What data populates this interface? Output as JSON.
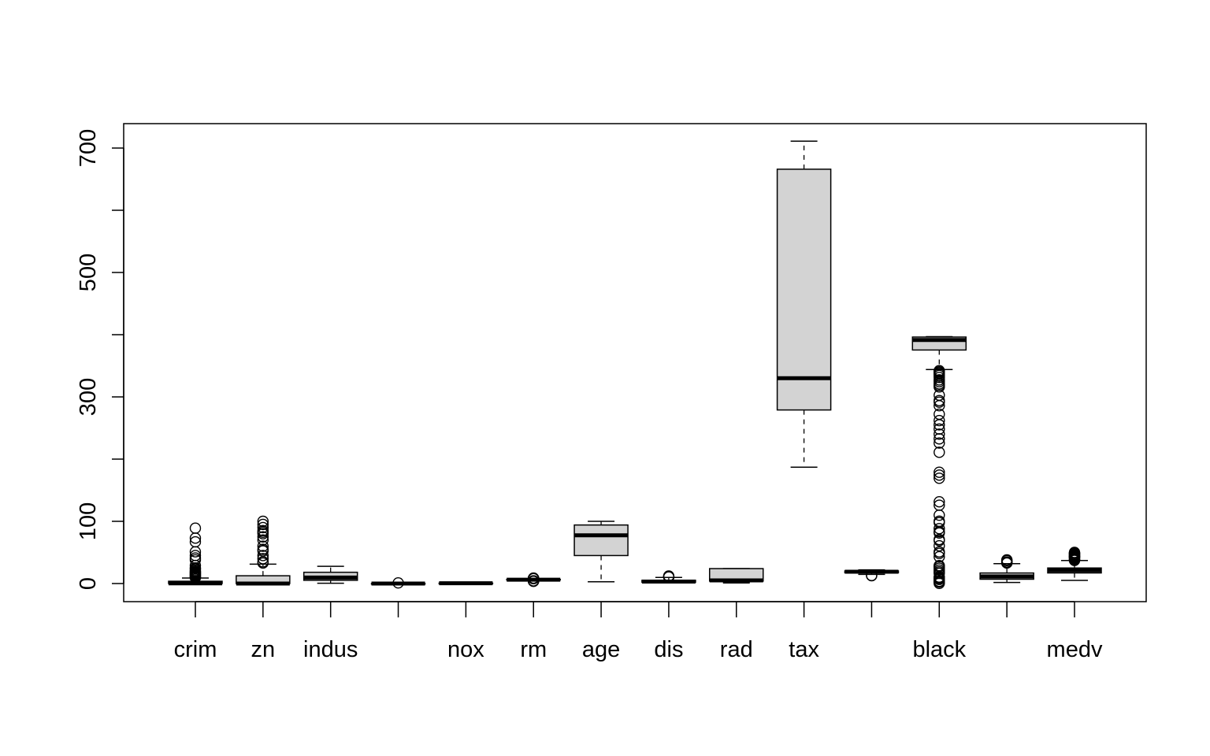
{
  "chart_data": {
    "type": "boxplot",
    "title": "",
    "xlabel": "",
    "ylabel": "",
    "ylim": [
      -30,
      740
    ],
    "y_ticks": [
      0,
      100,
      200,
      300,
      400,
      500,
      600,
      700
    ],
    "y_tick_labels": [
      "0",
      "",
      "",
      "",
      "",
      "",
      "",
      "",
      "100",
      "",
      "300",
      "",
      "500",
      "",
      "700"
    ],
    "y_tick_labels_shown": {
      "0": "0",
      "100": "100",
      "300": "300",
      "500": "500",
      "700": "700"
    },
    "x_tick_labels": [
      "crim",
      "zn",
      "indus",
      "",
      "nox",
      "rm",
      "age",
      "dis",
      "rad",
      "tax",
      "",
      "black",
      "",
      "medv"
    ],
    "fill_color": "#d3d3d3",
    "series": [
      {
        "label": "crim",
        "stats": [
          0.006,
          0.08,
          0.26,
          3.68,
          8.9
        ],
        "outliers": [
          9.5,
          10,
          11,
          12,
          13,
          14,
          15,
          16,
          17,
          18,
          19,
          20,
          22,
          24,
          25,
          29,
          38,
          41,
          45,
          51,
          67,
          73,
          89
        ]
      },
      {
        "label": "zn",
        "stats": [
          0,
          0,
          0,
          12.5,
          31.25
        ],
        "outliers": [
          33,
          35,
          40,
          45,
          52.5,
          55,
          60,
          70,
          75,
          80,
          82.5,
          85,
          90,
          95,
          100
        ]
      },
      {
        "label": "indus",
        "stats": [
          0.46,
          5.19,
          9.69,
          18.1,
          27.74
        ],
        "outliers": []
      },
      {
        "label": "",
        "stats": [
          0,
          0,
          0,
          0,
          0
        ],
        "outliers": [
          1
        ]
      },
      {
        "label": "nox",
        "stats": [
          0.385,
          0.449,
          0.538,
          0.624,
          0.871
        ],
        "outliers": []
      },
      {
        "label": "rm",
        "stats": [
          4.88,
          5.89,
          6.21,
          6.62,
          7.69
        ],
        "outliers": [
          3.56,
          3.86,
          4.14,
          4.37,
          7.82,
          8.04,
          8.25,
          8.4,
          8.78
        ]
      },
      {
        "label": "age",
        "stats": [
          2.9,
          45,
          77.5,
          94.1,
          100
        ],
        "outliers": []
      },
      {
        "label": "dis",
        "stats": [
          1.13,
          2.1,
          3.21,
          5.19,
          9.82
        ],
        "outliers": [
          10.6,
          10.7,
          12.1
        ]
      },
      {
        "label": "rad",
        "stats": [
          1,
          4,
          5,
          24,
          24
        ],
        "outliers": []
      },
      {
        "label": "tax",
        "stats": [
          187,
          279,
          330,
          666,
          711
        ],
        "outliers": []
      },
      {
        "label": "",
        "stats": [
          14.7,
          17.4,
          19.05,
          20.2,
          22
        ],
        "outliers": [
          12.6,
          13
        ]
      },
      {
        "label": "black",
        "stats": [
          344.05,
          375.38,
          391.44,
          396.23,
          396.9
        ],
        "outliers": [
          0.32,
          2.52,
          3.5,
          3.65,
          6.68,
          7.68,
          9.32,
          10.48,
          16.45,
          18.82,
          21.57,
          24.65,
          27.25,
          28.79,
          43.06,
          48.45,
          50.92,
          60.72,
          68.95,
          70.8,
          81.33,
          83.45,
          88.27,
          97.95,
          100.19,
          109.85,
          125.93,
          131.42,
          169.27,
          174.27,
          178.91,
          210.97,
          225.86,
          232.6,
          240.16,
          248.31,
          255.23,
          261.95,
          272.21,
          285.83,
          291.55,
          294.12,
          302.76,
          316.03,
          318.43,
          321.02,
          324.46,
          327.38,
          331.29,
          334.4,
          336.92,
          338.63,
          340.27,
          342.11
        ]
      },
      {
        "label": "",
        "stats": [
          1.73,
          6.95,
          11.36,
          16.96,
          31.99
        ],
        "outliers": [
          32.99,
          33.9,
          34.02,
          34.37,
          34.41,
          34.77,
          36.98,
          37.97
        ]
      },
      {
        "label": "medv",
        "stats": [
          5,
          17.02,
          21.2,
          25,
          37
        ],
        "outliers": [
          37.2,
          37.6,
          38.7,
          39.8,
          41.3,
          42.3,
          42.8,
          43.1,
          43.5,
          44,
          45.4,
          46,
          46.7,
          48.3,
          48.5,
          48.8,
          50
        ]
      }
    ]
  }
}
